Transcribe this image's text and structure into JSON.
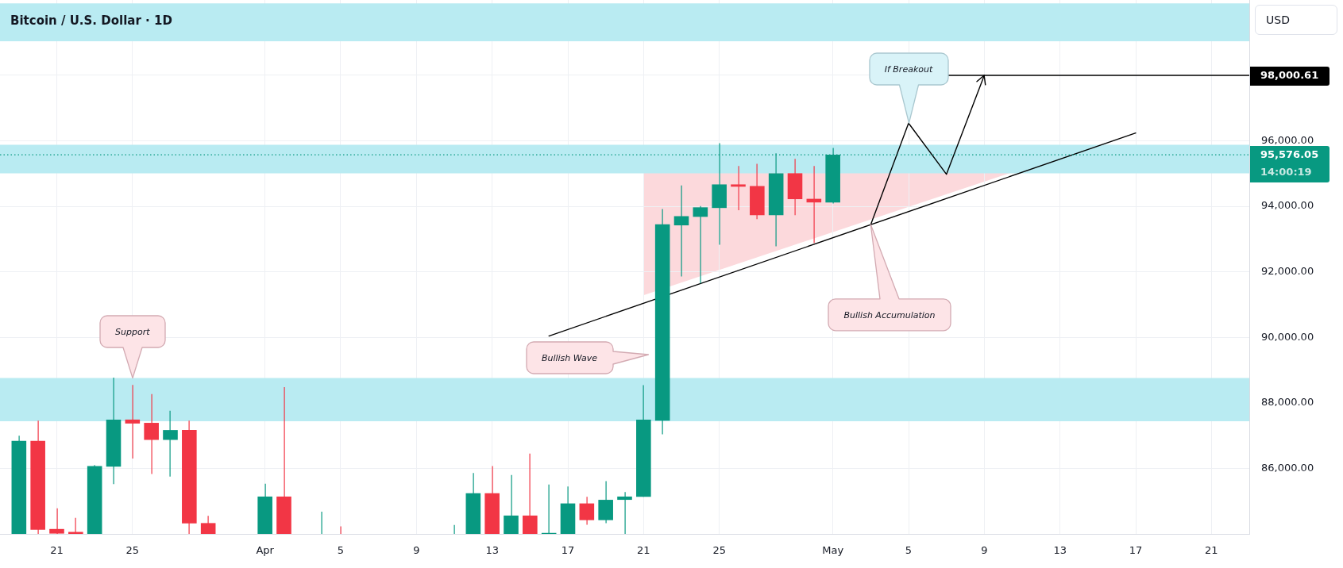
{
  "chart_data": {
    "type": "candlestick",
    "title": "Bitcoin / U.S. Dollar · 1D",
    "x": [
      "--03-19",
      "--03-20",
      "--03-21",
      "--03-22",
      "--03-23",
      "--03-24",
      "--03-25",
      "--03-26",
      "--03-27",
      "--03-28",
      "--03-29",
      "--04-01",
      "--04-02",
      "--04-04",
      "--04-05",
      "--04-11",
      "--04-12",
      "--04-13",
      "--04-14",
      "--04-15",
      "--04-16",
      "--04-17",
      "--04-18",
      "--04-19",
      "--04-20",
      "--04-21",
      "--04-22",
      "--04-23",
      "--04-24",
      "--04-25",
      "--04-26",
      "--04-27",
      "--04-28",
      "--04-29",
      "--04-30",
      "--05-01"
    ],
    "ohlc": [
      [
        84000,
        87000,
        84000,
        86840
      ],
      [
        86840,
        87460,
        84000,
        84130
      ],
      [
        84150,
        84780,
        84000,
        84010
      ],
      [
        84060,
        84490,
        84000,
        84000
      ],
      [
        84000,
        86100,
        84000,
        86070
      ],
      [
        86050,
        88770,
        85520,
        87490
      ],
      [
        87490,
        88550,
        86300,
        87370
      ],
      [
        87390,
        88270,
        85830,
        86870
      ],
      [
        86870,
        87760,
        85750,
        87170
      ],
      [
        87170,
        87460,
        84000,
        84320
      ],
      [
        84330,
        84550,
        84000,
        84000
      ],
      [
        84000,
        85530,
        84000,
        85140
      ],
      [
        85140,
        88480,
        84000,
        84000
      ],
      [
        84000,
        84680,
        84000,
        84000
      ],
      [
        84000,
        84230,
        84000,
        84000
      ],
      [
        84000,
        84270,
        84000,
        84000
      ],
      [
        84000,
        85860,
        84000,
        85240
      ],
      [
        85240,
        86070,
        84000,
        84000
      ],
      [
        84000,
        85800,
        84000,
        84560
      ],
      [
        84560,
        86450,
        84000,
        84000
      ],
      [
        84000,
        85510,
        84000,
        84030
      ],
      [
        84000,
        85450,
        84000,
        84930
      ],
      [
        84930,
        85130,
        84280,
        84420
      ],
      [
        84420,
        85610,
        84330,
        85040
      ],
      [
        85040,
        85280,
        84000,
        85140
      ],
      [
        85130,
        88540,
        85130,
        87490
      ],
      [
        87460,
        93920,
        87040,
        93450
      ],
      [
        93420,
        94640,
        91860,
        93700
      ],
      [
        93680,
        94010,
        91650,
        93970
      ],
      [
        93950,
        95930,
        92830,
        94670
      ],
      [
        94670,
        95230,
        93880,
        94600
      ],
      [
        94620,
        95300,
        93610,
        93730
      ],
      [
        93730,
        95620,
        92780,
        95010
      ],
      [
        95010,
        95450,
        93730,
        94220
      ],
      [
        94230,
        95230,
        92880,
        94120
      ],
      [
        94120,
        95780,
        94090,
        95576.05
      ]
    ],
    "colors": [
      "#089981",
      "#f23645",
      "#f23645",
      "#f23645",
      "#089981",
      "#089981",
      "#f23645",
      "#f23645",
      "#089981",
      "#f23645",
      "#f23645",
      "#089981",
      "#f23645",
      "#089981",
      "#f23645",
      "#089981",
      "#089981",
      "#f23645",
      "#089981",
      "#f23645",
      "#089981",
      "#089981",
      "#f23645",
      "#089981",
      "#089981",
      "#089981",
      "#089981",
      "#089981",
      "#089981",
      "#089981",
      "#f23645",
      "#f23645",
      "#089981",
      "#f23645",
      "#f23645",
      "#089981"
    ],
    "xlim": [
      "--03-18",
      "--05-23"
    ],
    "xticks": [
      {
        "value": "--03-21",
        "label": "21"
      },
      {
        "value": "--03-25",
        "label": "25"
      },
      {
        "value": "--04-01",
        "label": "Apr"
      },
      {
        "value": "--04-05",
        "label": "5"
      },
      {
        "value": "--04-09",
        "label": "9"
      },
      {
        "value": "--04-13",
        "label": "13"
      },
      {
        "value": "--04-17",
        "label": "17"
      },
      {
        "value": "--04-21",
        "label": "21"
      },
      {
        "value": "--04-25",
        "label": "25"
      },
      {
        "value": "--05-01",
        "label": "May"
      },
      {
        "value": "--05-05",
        "label": "5"
      },
      {
        "value": "--05-09",
        "label": "9"
      },
      {
        "value": "--05-13",
        "label": "13"
      },
      {
        "value": "--05-17",
        "label": "17"
      },
      {
        "value": "--05-21",
        "label": "21"
      }
    ],
    "ylim": [
      84000,
      100300
    ],
    "yticks": [
      {
        "value": 86000,
        "label": "86,000.00"
      },
      {
        "value": 88000,
        "label": "88,000.00"
      },
      {
        "value": 90000,
        "label": "90,000.00"
      },
      {
        "value": 92000,
        "label": "92,000.00"
      },
      {
        "value": 94000,
        "label": "94,000.00"
      },
      {
        "value": 96000,
        "label": "96,000.00"
      },
      {
        "value": 98000,
        "label": null
      }
    ],
    "grid": true,
    "bands": [
      {
        "axis": "y",
        "from": 99040,
        "to": 100200,
        "color": "#b9ebf2"
      },
      {
        "axis": "y",
        "from": 95010,
        "to": 95880,
        "color": "#b9ebf2"
      },
      {
        "axis": "y",
        "from": 87440,
        "to": 88760,
        "color": "#b9ebf2"
      }
    ],
    "ref_lines": [
      {
        "axis": "y",
        "value": 95576.05,
        "label": "95,576.05\n14:00:19",
        "color": "#089981",
        "line_style": "dotted"
      }
    ],
    "series": [
      {
        "type": "line",
        "x": [
          "--04-16",
          "--05-17"
        ],
        "values": [
          90040,
          96240
        ],
        "color": "#000000"
      },
      {
        "type": "line",
        "x": [
          "--05-03",
          "--05-05",
          "--05-07",
          "--05-09"
        ],
        "values": [
          93440,
          96540,
          94980,
          98000
        ],
        "color": "#000000"
      },
      {
        "type": "line",
        "x": [
          "--05-07",
          "--05-23"
        ],
        "values": [
          98000.61,
          98000.61
        ],
        "value_labels": [
          null,
          "98,000.61"
        ],
        "color": "#000000"
      }
    ],
    "annotations": [
      "Support",
      "Bullish Wave",
      "Bullish Accumulation",
      "If Breakout",
      "USD"
    ]
  }
}
